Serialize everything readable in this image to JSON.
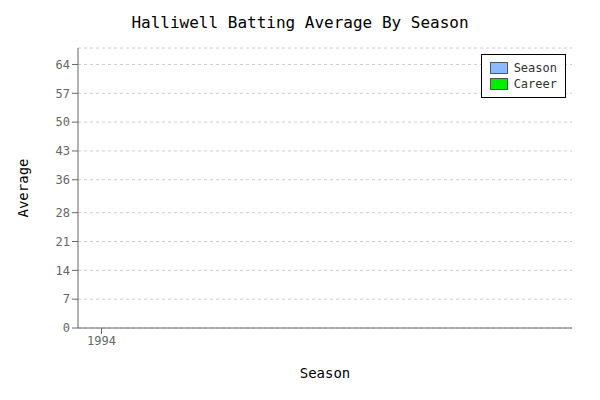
{
  "chart_data": {
    "type": "bar",
    "title": "Halliwell Batting Average By Season",
    "xlabel": "Season",
    "ylabel": "Average",
    "x": [],
    "series": [
      {
        "name": "Season",
        "color": "#88bbff",
        "values": []
      },
      {
        "name": "Career",
        "color": "#00ee00",
        "values": []
      }
    ],
    "xlim": [
      1993.8,
      1998.0
    ],
    "xticks": [
      1994
    ],
    "ylim": [
      0,
      68
    ],
    "yticks": [
      0,
      7,
      14,
      21,
      28,
      36,
      43,
      50,
      57,
      64
    ],
    "grid": true,
    "legend": "upper right"
  }
}
